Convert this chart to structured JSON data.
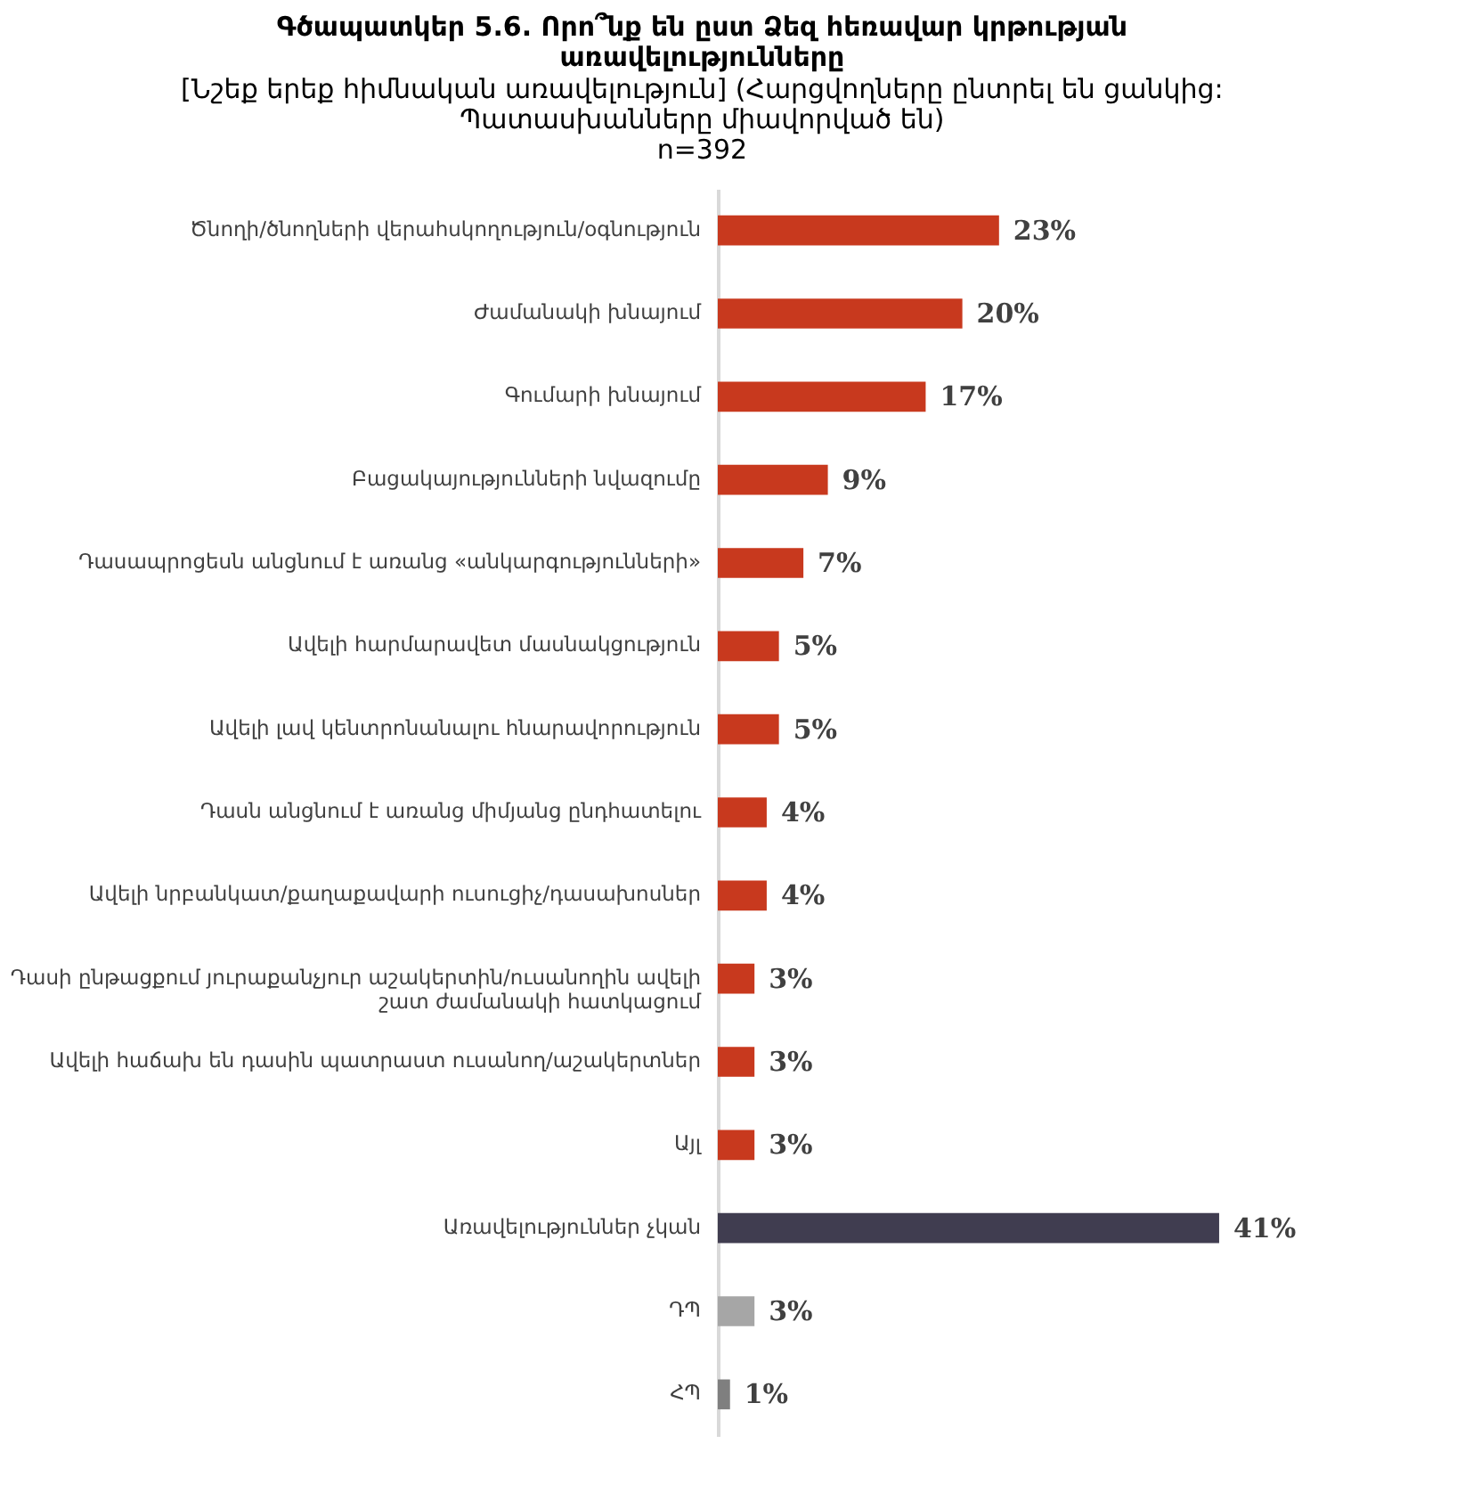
{
  "chart_data": {
    "type": "bar",
    "orientation": "horizontal",
    "title": "Գծապատկեր 5.6. Որո՞նք են ըստ Ձեզ հեռավար կրթության առավելությունները",
    "subtitle": "[Նշեք երեք հիմնական առավելություն] (Հարցվողները ընտրել են ցանկից: Պատասխանները միավորված են)",
    "annotations": [
      "n=392"
    ],
    "categories": [
      "Ծնողի/ծնողների վերահսկողություն/օգնություն",
      "Ժամանակի խնայում",
      "Գումարի խնայում",
      "Բացակայությունների նվազումը",
      "Դասապրոցեսն անցնում է առանց «անկարգությունների»",
      "Ավելի հարմարավետ մասնակցություն",
      "Ավելի լավ կենտրոնանալու հնարավորություն",
      "Դասն անցնում է առանց միմյանց ընդհատելու",
      "Ավելի նրբանկատ/քաղաքավարի ուսուցիչ/դասախոսներ",
      "Դասի ընթացքում յուրաքանչյուր աշակերտին/ուսանողին ավելի շատ ժամանակի հատկացում",
      "Ավելի հաճախ են դասին պատրաստ ուսանող/աշակերտներ",
      "Այլ",
      "Առավելություններ չկան",
      "ԴՊ",
      "ՀՊ"
    ],
    "values": [
      23,
      20,
      17,
      9,
      7,
      5,
      5,
      4,
      4,
      3,
      3,
      3,
      41,
      3,
      1
    ],
    "colors": [
      "#c8391e",
      "#c8391e",
      "#c8391e",
      "#c8391e",
      "#c8391e",
      "#c8391e",
      "#c8391e",
      "#c8391e",
      "#c8391e",
      "#c8391e",
      "#c8391e",
      "#c8391e",
      "#403d50",
      "#a6a6a6",
      "#7f7f7f"
    ],
    "value_labels": [
      "23%",
      "20%",
      "17%",
      "9%",
      "7%",
      "5%",
      "5%",
      "4%",
      "4%",
      "3%",
      "3%",
      "3%",
      "41%",
      "3%",
      "1%"
    ],
    "grid": false
  }
}
